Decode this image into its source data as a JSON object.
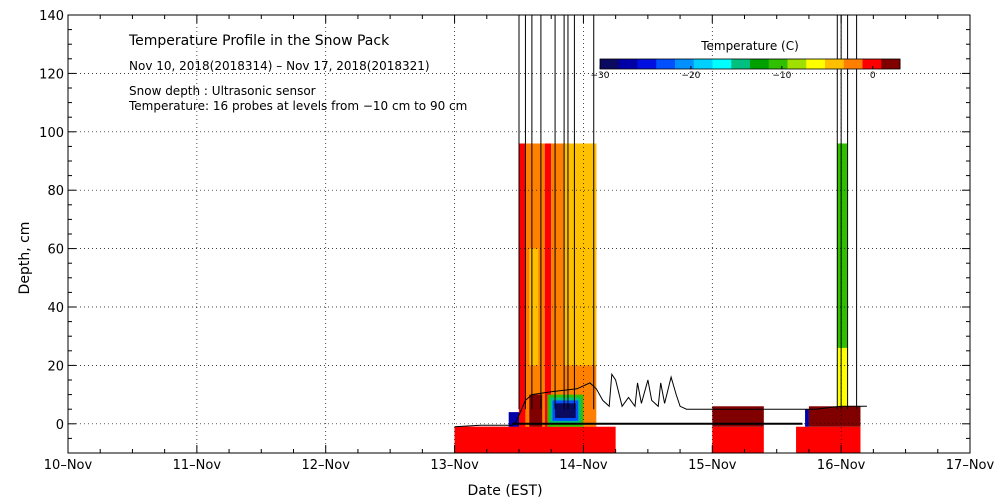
{
  "chart_data": {
    "type": "heatmap",
    "title": "Temperature Profile in the Snow Pack",
    "subtitle": "Nov 10, 2018(2018314) – Nov 17, 2018(2018321)",
    "notes": [
      "Snow depth : Ultrasonic sensor",
      "Temperature: 16 probes at levels from −10 cm to 90 cm"
    ],
    "xlabel": "Date (EST)",
    "ylabel": "Depth, cm",
    "x_ticks": [
      "10–Nov",
      "11–Nov",
      "12–Nov",
      "13–Nov",
      "14–Nov",
      "15–Nov",
      "16–Nov",
      "17–Nov"
    ],
    "xlim": [
      0,
      7
    ],
    "ylim": [
      -10,
      140
    ],
    "y_ticks": [
      0,
      20,
      40,
      60,
      80,
      100,
      120,
      140
    ],
    "grid": true,
    "colorbar": {
      "label": "Temperature (C)",
      "placement": "top-right",
      "range": [
        -30,
        3
      ],
      "ticks": [
        {
          "value": -30,
          "label": "−30"
        },
        {
          "value": -20,
          "label": "−20"
        },
        {
          "value": -10,
          "label": "−10"
        },
        {
          "value": 0,
          "label": "0"
        }
      ],
      "colors": [
        "#0a0a60",
        "#0000a8",
        "#0010e0",
        "#0050ff",
        "#0090ff",
        "#00d0ff",
        "#00ffff",
        "#00c080",
        "#00a000",
        "#30c000",
        "#a0e000",
        "#ffff00",
        "#ffc000",
        "#ff8000",
        "#ff0000",
        "#800000"
      ]
    },
    "snow_depth": [
      [
        3.0,
        -1.0
      ],
      [
        3.2,
        -0.5
      ],
      [
        3.35,
        -0.5
      ],
      [
        3.45,
        -0.5
      ],
      [
        3.48,
        1
      ],
      [
        3.5,
        3
      ],
      [
        3.52,
        5
      ],
      [
        3.55,
        8
      ],
      [
        3.6,
        10
      ],
      [
        3.75,
        11
      ],
      [
        3.95,
        12
      ],
      [
        4.05,
        14
      ],
      [
        4.1,
        12
      ],
      [
        4.15,
        8
      ],
      [
        4.2,
        6
      ],
      [
        4.22,
        17
      ],
      [
        4.25,
        15
      ],
      [
        4.3,
        6
      ],
      [
        4.35,
        9
      ],
      [
        4.4,
        6
      ],
      [
        4.42,
        14
      ],
      [
        4.45,
        7
      ],
      [
        4.5,
        15
      ],
      [
        4.53,
        8
      ],
      [
        4.58,
        6
      ],
      [
        4.6,
        14
      ],
      [
        4.63,
        7
      ],
      [
        4.68,
        16
      ],
      [
        4.72,
        10
      ],
      [
        4.75,
        6
      ],
      [
        4.8,
        5
      ],
      [
        5.0,
        5
      ],
      [
        5.2,
        5
      ],
      [
        5.4,
        5
      ],
      [
        5.6,
        5
      ],
      [
        5.8,
        5
      ],
      [
        6.0,
        6
      ],
      [
        6.2,
        6
      ]
    ],
    "temperature_blocks": [
      {
        "x": [
          3.0,
          4.1
        ],
        "y": [
          -10,
          -1
        ],
        "temp": 0
      },
      {
        "x": [
          3.0,
          3.45
        ],
        "y": [
          -2,
          -1
        ],
        "temp": -1
      },
      {
        "x": [
          3.45,
          4.25
        ],
        "y": [
          -10,
          -1
        ],
        "temp": 0
      },
      {
        "x": [
          3.5,
          3.55
        ],
        "y": [
          -1,
          96
        ],
        "temp": -1
      },
      {
        "x": [
          3.55,
          3.7
        ],
        "y": [
          -1,
          96
        ],
        "temp": -2
      },
      {
        "x": [
          3.58,
          3.65
        ],
        "y": [
          20,
          60
        ],
        "temp": -4
      },
      {
        "x": [
          3.7,
          3.75
        ],
        "y": [
          -1,
          96
        ],
        "temp": -1
      },
      {
        "x": [
          3.75,
          4.1
        ],
        "y": [
          -1,
          96
        ],
        "temp": -3
      },
      {
        "x": [
          3.85,
          4.1
        ],
        "y": [
          20,
          96
        ],
        "temp": -4
      },
      {
        "x": [
          3.58,
          3.68
        ],
        "y": [
          -1,
          10
        ],
        "temp": 2
      },
      {
        "x": [
          3.72,
          4.0
        ],
        "y": [
          -1,
          10
        ],
        "temp": -10
      },
      {
        "x": [
          3.74,
          3.98
        ],
        "y": [
          0,
          9
        ],
        "temp": -15
      },
      {
        "x": [
          3.76,
          3.96
        ],
        "y": [
          1,
          8
        ],
        "temp": -22
      },
      {
        "x": [
          3.78,
          3.94
        ],
        "y": [
          2,
          7
        ],
        "temp": -28
      },
      {
        "x": [
          3.42,
          3.5
        ],
        "y": [
          -1,
          4
        ],
        "temp": -27
      },
      {
        "x": [
          5.0,
          5.4
        ],
        "y": [
          -10,
          -1
        ],
        "temp": 0
      },
      {
        "x": [
          5.0,
          5.4
        ],
        "y": [
          -1,
          6
        ],
        "temp": 2
      },
      {
        "x": [
          5.65,
          6.15
        ],
        "y": [
          -10,
          -1
        ],
        "temp": 0
      },
      {
        "x": [
          5.72,
          5.75
        ],
        "y": [
          -1,
          5
        ],
        "temp": -27
      },
      {
        "x": [
          5.75,
          6.15
        ],
        "y": [
          -1,
          6
        ],
        "temp": 2
      },
      {
        "x": [
          5.97,
          6.05
        ],
        "y": [
          6,
          96
        ],
        "temp": -10
      },
      {
        "x": [
          5.97,
          6.05
        ],
        "y": [
          6,
          26
        ],
        "temp": -6
      }
    ],
    "ground_line": [
      [
        3.45,
        0
      ],
      [
        5.7,
        0
      ]
    ],
    "vertical_lines_x": [
      3.5,
      3.55,
      3.6,
      3.67,
      3.78,
      3.85,
      3.88,
      3.93,
      4.08,
      5.97,
      6.0,
      6.05,
      6.12
    ]
  }
}
